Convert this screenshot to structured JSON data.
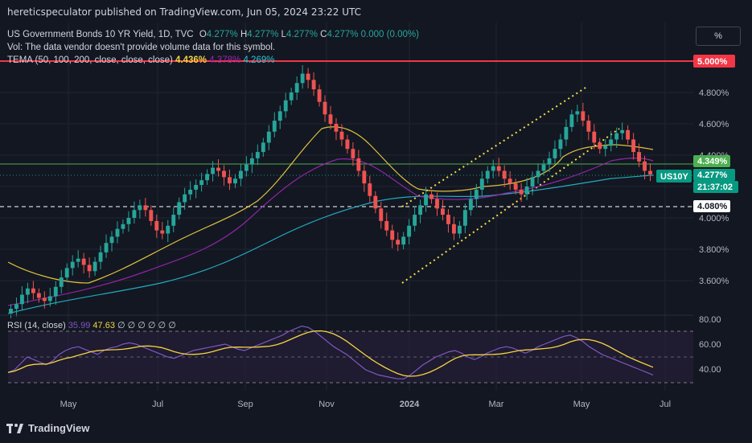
{
  "publisher": "hereticspeculator published on TradingView.com, Jun 05, 2024 23:22 UTC",
  "symbol_line": "US Government Bonds 10 YR Yield, 1D, TVC",
  "ohlc": {
    "o_label": "O",
    "o": "4.277%",
    "h_label": "H",
    "h": "4.277%",
    "l_label": "L",
    "l": "4.277%",
    "c_label": "C",
    "c": "4.277%",
    "change": "0.000 (0.00%)"
  },
  "volume_note": "Vol: The data vendor doesn't provide volume data for this symbol.",
  "tema": {
    "label": "TEMA (50, 100, 200, close, close, close)",
    "v1": "4.436%",
    "v2": "4.378%",
    "v3": "4.269%",
    "colors": [
      "#f5d442",
      "#9c27b0",
      "#26c6da"
    ]
  },
  "pct_button": "%",
  "rsi": {
    "label": "RSI (14, close)",
    "v1": "35.99",
    "v2": "47.63",
    "extras": "∅ ∅ ∅ ∅ ∅ ∅"
  },
  "footer_brand": "TradingView",
  "price_axis": {
    "ticks": [
      "4.800%",
      "4.600%",
      "4.400%",
      "4.000%",
      "3.800%",
      "3.600%"
    ],
    "tags": [
      {
        "text": "5.000%",
        "bg": "#f23645",
        "fg": "#ffffff"
      },
      {
        "text": "4.349%",
        "bg": "#4caf50",
        "fg": "#ffffff"
      },
      {
        "text": "US10Y",
        "bg": "#089981",
        "fg": "#ffffff"
      },
      {
        "text": "4.277%",
        "bg": "#089981",
        "fg": "#ffffff"
      },
      {
        "text": "21:37:02",
        "bg": "#089981",
        "fg": "#ffffff"
      },
      {
        "text": "4.080%",
        "bg": "#ffffff",
        "fg": "#131722"
      }
    ]
  },
  "rsi_axis": {
    "ticks": [
      "80.00",
      "60.00",
      "40.00"
    ]
  },
  "time_axis": {
    "ticks": [
      "May",
      "Jul",
      "Sep",
      "Nov",
      "2024",
      "Mar",
      "May",
      "Jul"
    ]
  },
  "chart_data": {
    "type": "candlestick",
    "symbol": "US10Y",
    "yunit": "%",
    "ylim": [
      3.5,
      5.0
    ],
    "levels": [
      {
        "value": 5.0,
        "color": "#f23645",
        "style": "solid"
      },
      {
        "value": 4.349,
        "color": "#4caf50",
        "style": "solid"
      },
      {
        "value": 4.277,
        "color": "#089981",
        "style": "dotted"
      },
      {
        "value": 4.08,
        "color": "#ffffff",
        "style": "dashed"
      }
    ],
    "close_series": [
      3.42,
      3.45,
      3.51,
      3.55,
      3.52,
      3.49,
      3.47,
      3.5,
      3.56,
      3.62,
      3.68,
      3.72,
      3.74,
      3.7,
      3.66,
      3.72,
      3.78,
      3.84,
      3.88,
      3.93,
      3.96,
      4.0,
      4.05,
      4.08,
      4.05,
      3.98,
      3.92,
      3.9,
      3.95,
      4.02,
      4.1,
      4.15,
      4.18,
      4.21,
      4.24,
      4.28,
      4.32,
      4.3,
      4.26,
      4.22,
      4.25,
      4.3,
      4.34,
      4.38,
      4.42,
      4.48,
      4.55,
      4.62,
      4.68,
      4.75,
      4.8,
      4.86,
      4.92,
      4.88,
      4.82,
      4.74,
      4.66,
      4.6,
      4.55,
      4.5,
      4.44,
      4.38,
      4.3,
      4.22,
      4.14,
      4.06,
      3.98,
      3.92,
      3.86,
      3.83,
      3.88,
      3.95,
      4.02,
      4.08,
      4.15,
      4.12,
      4.06,
      4.02,
      3.96,
      3.9,
      3.95,
      4.05,
      4.12,
      4.18,
      4.25,
      4.3,
      4.33,
      4.3,
      4.25,
      4.22,
      4.18,
      4.15,
      4.2,
      4.26,
      4.3,
      4.34,
      4.38,
      4.44,
      4.5,
      4.58,
      4.66,
      4.68,
      4.62,
      4.55,
      4.48,
      4.44,
      4.46,
      4.5,
      4.54,
      4.56,
      4.5,
      4.42,
      4.36,
      4.3,
      4.277
    ],
    "rsi_series": [
      38,
      40,
      45,
      50,
      48,
      46,
      44,
      47,
      52,
      55,
      57,
      58,
      56,
      54,
      52,
      55,
      57,
      58,
      60,
      61,
      60,
      58,
      56,
      54,
      52,
      50,
      49,
      51,
      53,
      55,
      56,
      57,
      58,
      59,
      60,
      58,
      56,
      55,
      57,
      59,
      61,
      63,
      65,
      67,
      70,
      72,
      74,
      73,
      70,
      66,
      62,
      58,
      55,
      52,
      48,
      44,
      40,
      38,
      36,
      35,
      34,
      33,
      33,
      36,
      40,
      44,
      47,
      50,
      52,
      54,
      55,
      53,
      50,
      48,
      50,
      53,
      55,
      57,
      58,
      57,
      55,
      53,
      55,
      58,
      60,
      62,
      64,
      66,
      67,
      65,
      62,
      58,
      55,
      52,
      50,
      48,
      46,
      44,
      42,
      40,
      38,
      36
    ],
    "rsi_ylim": [
      25,
      85
    ],
    "rsi_levels": [
      70,
      50,
      30
    ],
    "tema_last": [
      4.436,
      4.378,
      4.269
    ]
  }
}
